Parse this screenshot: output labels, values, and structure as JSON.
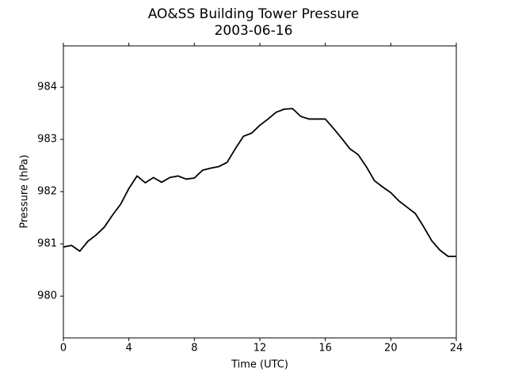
{
  "chart_data": {
    "type": "line",
    "title": "AO&SS Building Tower Pressure",
    "subtitle": "2003-06-16",
    "x_label": "Time (UTC)",
    "y_label": "Pressure (hPa)",
    "x": [
      0,
      0.5,
      1,
      1.5,
      2,
      2.5,
      3,
      3.5,
      4,
      4.5,
      5,
      5.5,
      6,
      6.5,
      7,
      7.5,
      8,
      8.5,
      9,
      9.5,
      10,
      10.5,
      11,
      11.5,
      12,
      12.5,
      13,
      13.5,
      14,
      14.5,
      15,
      15.5,
      16,
      16.5,
      17,
      17.5,
      18,
      18.5,
      19,
      19.5,
      20,
      20.5,
      21,
      21.5,
      22,
      22.5,
      23,
      23.5,
      24
    ],
    "series": [
      {
        "name": "Pressure",
        "color": "#000000",
        "values": [
          980.94,
          980.97,
          980.86,
          981.05,
          981.17,
          981.32,
          981.55,
          981.76,
          982.06,
          982.3,
          982.17,
          982.27,
          982.18,
          982.27,
          982.3,
          982.24,
          982.26,
          982.41,
          982.45,
          982.48,
          982.56,
          982.82,
          983.06,
          983.12,
          983.27,
          983.39,
          983.52,
          983.58,
          983.59,
          983.44,
          983.39,
          983.39,
          983.39,
          983.21,
          983.02,
          982.82,
          982.71,
          982.48,
          982.21,
          982.09,
          981.98,
          981.82,
          981.7,
          981.58,
          981.33,
          981.06,
          980.88,
          980.76,
          980.76
        ]
      }
    ],
    "xlim": [
      0,
      24
    ],
    "xticks": [
      0,
      4,
      8,
      12,
      16,
      20,
      24
    ],
    "ylim": [
      979.2,
      984.79
    ],
    "yticks": [
      980,
      981,
      982,
      983,
      984
    ]
  }
}
